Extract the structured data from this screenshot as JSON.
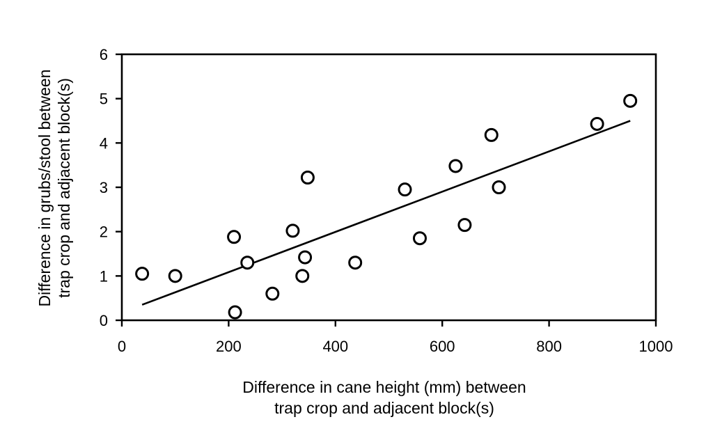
{
  "chart_data": {
    "type": "scatter",
    "title": "",
    "xlabel_lines": [
      "Difference in cane height (mm) between",
      "trap crop and adjacent block(s)"
    ],
    "ylabel_lines": [
      "Difference in grubs/stool between",
      "trap crop and adjacent block(s)"
    ],
    "xlim": [
      0,
      1000
    ],
    "ylim": [
      0,
      6
    ],
    "xticks": [
      0,
      200,
      400,
      600,
      800,
      1000
    ],
    "yticks": [
      0,
      1,
      2,
      3,
      4,
      5,
      6
    ],
    "grid": false,
    "marker": "open-circle",
    "points": [
      {
        "x": 38,
        "y": 1.05
      },
      {
        "x": 100,
        "y": 1.0
      },
      {
        "x": 210,
        "y": 1.88
      },
      {
        "x": 212,
        "y": 0.18
      },
      {
        "x": 235,
        "y": 1.3
      },
      {
        "x": 282,
        "y": 0.6
      },
      {
        "x": 320,
        "y": 2.02
      },
      {
        "x": 338,
        "y": 1.0
      },
      {
        "x": 343,
        "y": 1.42
      },
      {
        "x": 348,
        "y": 3.22
      },
      {
        "x": 437,
        "y": 1.3
      },
      {
        "x": 530,
        "y": 2.95
      },
      {
        "x": 558,
        "y": 1.85
      },
      {
        "x": 625,
        "y": 3.48
      },
      {
        "x": 642,
        "y": 2.15
      },
      {
        "x": 692,
        "y": 4.18
      },
      {
        "x": 706,
        "y": 3.0
      },
      {
        "x": 890,
        "y": 4.43
      },
      {
        "x": 952,
        "y": 4.95
      }
    ],
    "trendline": {
      "x": [
        38,
        952
      ],
      "y": [
        0.35,
        4.5
      ]
    }
  }
}
